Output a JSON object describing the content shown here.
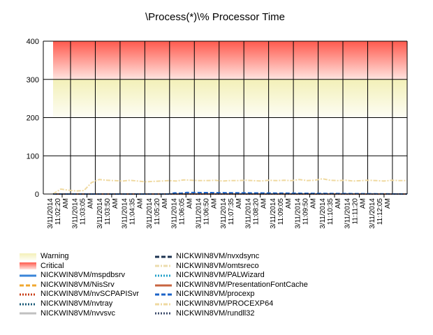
{
  "chart_data": {
    "type": "line",
    "title": "\\Process(*)\\% Processor Time",
    "ylim": [
      0,
      400
    ],
    "yticks": [
      0,
      100,
      200,
      300,
      400
    ],
    "grid": true,
    "bands": [
      {
        "name": "Warning",
        "from": 200,
        "to": 300,
        "color_top": "#f3f0b8",
        "color_bottom": "#fdfdf4"
      },
      {
        "name": "Critical",
        "from": 300,
        "to": 400,
        "color_top": "#ff5a4e",
        "color_bottom": "#ffe4e0"
      }
    ],
    "x_ticks": [
      [
        "3/11/2014",
        "11:02:20",
        "AM"
      ],
      [
        "3/11/2014",
        "11:03:05",
        "AM"
      ],
      [
        "3/11/2014",
        "11:03:50",
        "AM"
      ],
      [
        "3/11/2014",
        "11:04:35",
        "AM"
      ],
      [
        "3/11/2014",
        "11:05:20",
        "AM"
      ],
      [
        "3/11/2014",
        "11:06:05",
        "AM"
      ],
      [
        "3/11/2014",
        "11:06:50",
        "AM"
      ],
      [
        "3/11/2014",
        "11:07:35",
        "AM"
      ],
      [
        "3/11/2014",
        "11:08:20",
        "AM"
      ],
      [
        "3/11/2014",
        "11:09:05",
        "AM"
      ],
      [
        "3/11/2014",
        "11:09:50",
        "AM"
      ],
      [
        "3/11/2014",
        "11:10:35",
        "AM"
      ],
      [
        "3/11/2014",
        "11:11:20",
        "AM"
      ],
      [
        "3/11/2014",
        "11:12:05",
        "AM"
      ]
    ],
    "x_range": [
      0,
      23
    ],
    "series": [
      {
        "name": "NICKWIN8VM/mspdbsrv",
        "color": "#3a85d8",
        "dash": "solid",
        "x": [
          0,
          23
        ],
        "values": [
          0,
          0
        ]
      },
      {
        "name": "NICKWIN8VM/NisSrv",
        "color": "#f0a830",
        "dash": "dash",
        "x": [
          0,
          23
        ],
        "values": [
          0,
          0
        ]
      },
      {
        "name": "NICKWIN8VM/nvSCPAPISvr",
        "color": "#c83c14",
        "dash": "dot",
        "x": [
          0,
          23
        ],
        "values": [
          0,
          0
        ]
      },
      {
        "name": "NICKWIN8VM/nvtray",
        "color": "#1a5a78",
        "dash": "dot",
        "x": [
          0,
          23
        ],
        "values": [
          0,
          0
        ]
      },
      {
        "name": "NICKWIN8VM/nvvsvc",
        "color": "#c0c0c0",
        "dash": "solid",
        "x": [
          0,
          23
        ],
        "values": [
          0,
          0
        ]
      },
      {
        "name": "NICKWIN8VM/nvxdsync",
        "color": "#1c3350",
        "dash": "dash",
        "x": [
          0,
          23
        ],
        "values": [
          0,
          0
        ]
      },
      {
        "name": "NICKWIN8VM/omtsreco",
        "color": "#ecdcae",
        "dash": "dashdot",
        "x": [
          0,
          23
        ],
        "values": [
          0,
          0
        ]
      },
      {
        "name": "NICKWIN8VM/PALWizard",
        "color": "#20a0c8",
        "dash": "dot",
        "x": [
          0,
          23
        ],
        "values": [
          0,
          0
        ]
      },
      {
        "name": "NICKWIN8VM/PresentationFontCache",
        "color": "#c86440",
        "dash": "solid",
        "x": [
          0,
          23
        ],
        "values": [
          0,
          0
        ]
      },
      {
        "name": "NICKWIN8VM/procexp",
        "color": "#1c64c8",
        "dash": "dash",
        "x": [
          0,
          7.5,
          7.9,
          8.3,
          8.7,
          23
        ],
        "values": [
          0,
          0,
          3,
          2,
          4,
          0
        ]
      },
      {
        "name": "NICKWIN8VM/PROCEXP64",
        "color": "#efd9a0",
        "dash": "dashdot",
        "x": [
          0,
          0.5,
          1,
          1.5,
          2,
          2.5,
          3,
          3.5,
          4,
          4.5,
          5,
          5.5,
          6,
          6.5,
          7,
          7.5,
          8,
          8.5,
          9,
          9.5,
          10,
          10.5,
          11,
          11.5,
          12,
          12.5,
          13,
          13.5,
          14,
          14.5,
          15,
          15.5,
          16,
          16.5,
          17,
          17.5,
          18,
          18.5,
          19,
          19.5,
          20,
          20.5,
          21,
          21.5,
          22,
          22.5,
          23
        ],
        "values": [
          0,
          13,
          10,
          8,
          9,
          30,
          38,
          36,
          35,
          34,
          36,
          34,
          32,
          33,
          34,
          35,
          34,
          37,
          36,
          35,
          35,
          36,
          34,
          35,
          35,
          36,
          35,
          34,
          36,
          35,
          36,
          35,
          38,
          35,
          36,
          40,
          36,
          35,
          36,
          34,
          35,
          36,
          35,
          34,
          36,
          35,
          35
        ]
      },
      {
        "name": "NICKWIN8VM/rundll32",
        "color": "#3c4c6c",
        "dash": "dot",
        "x": [
          0,
          23
        ],
        "values": [
          0,
          0
        ]
      }
    ]
  }
}
